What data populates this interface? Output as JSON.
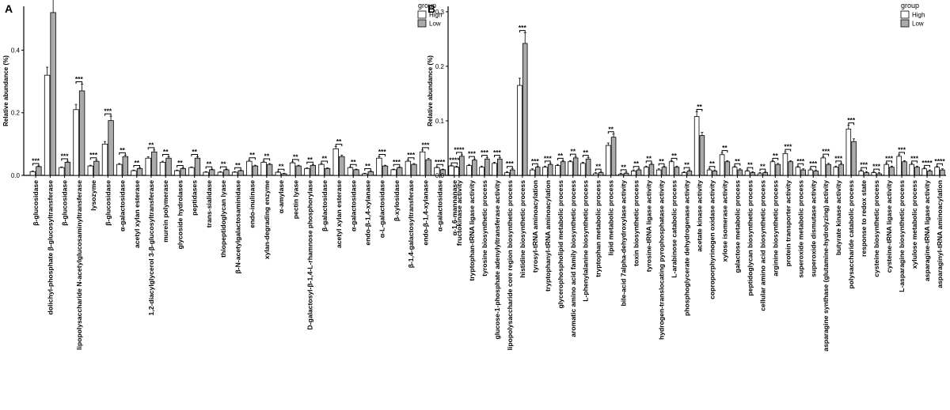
{
  "chart_data": [
    {
      "type": "bar",
      "panel_label": "A",
      "ylabel": "Relative abundance (%)",
      "yticks": [
        0.0,
        0.2,
        0.4
      ],
      "ytick_labels": [
        "0.0",
        "0.2",
        "0.4"
      ],
      "ylim": [
        0,
        0.54
      ],
      "legend": {
        "title": "group",
        "entries": [
          "High",
          "Low"
        ],
        "position": "top-right",
        "colors": [
          "#ffffff",
          "#aaaaaa"
        ]
      },
      "categories": [
        "β-glucosidase",
        "dolichyl-phosphate β-glucosyltransferase",
        "β-glucosidase",
        "lipopolysaccharide N-acetylglucosaminyltransferase",
        "lysozyme",
        "β-glucosidase",
        "α-galactosidase",
        "acetyl xylan esterase",
        "1,2-diacylglycerol 3-β-glucosyltransferase",
        "murein polymerase",
        "glycoside hydrolases",
        "peptidases",
        "trans-sialidase",
        "thiopeptidoglycan lyase",
        "β-N-acetylgalactosaminidase",
        "endo-inulinase",
        "xylan-degrading enzyme",
        "α-amylase",
        "pectin lyase",
        "D-galactosyl-β-1,4-L-rhamnose phosphorylase",
        "β-galactosidase",
        "acetyl xylan esterase",
        "α-galactosidase",
        "endo-β-1,4-xylanase",
        "α-L-galactosidase",
        "β-xylosidase",
        "β-1,4-galactosyltransferase",
        "endo-β-1,4-xylanase",
        "α-galactosidase",
        "α-1,6-mannanase"
      ],
      "series": [
        {
          "name": "High",
          "values": [
            0.012,
            0.32,
            0.025,
            0.21,
            0.03,
            0.1,
            0.035,
            0.015,
            0.055,
            0.042,
            0.015,
            0.025,
            0.01,
            0.01,
            0.01,
            0.045,
            0.042,
            0.01,
            0.04,
            0.022,
            0.035,
            0.085,
            0.025,
            0.005,
            0.055,
            0.018,
            0.045,
            0.075,
            0.025,
            0.03
          ]
        },
        {
          "name": "Low",
          "values": [
            0.028,
            0.52,
            0.042,
            0.27,
            0.045,
            0.175,
            0.06,
            0.022,
            0.075,
            0.055,
            0.022,
            0.055,
            0.018,
            0.018,
            0.015,
            0.03,
            0.035,
            0.005,
            0.03,
            0.032,
            0.022,
            0.06,
            0.018,
            0.012,
            0.03,
            0.025,
            0.035,
            0.05,
            0.018,
            0.025
          ]
        }
      ],
      "significance": [
        "***",
        "***",
        "***",
        "***",
        "***",
        "***",
        "**",
        "**",
        "**",
        "**",
        "**",
        "**",
        "**",
        "**",
        "**",
        "**",
        "**",
        "**",
        "**",
        "**",
        "**",
        "**",
        "**",
        "**",
        "***",
        "***",
        "***",
        "***",
        "****",
        "****"
      ]
    },
    {
      "type": "bar",
      "panel_label": "B",
      "ylabel": "Relative abundance (%)",
      "yticks": [
        0.0,
        0.1,
        0.2,
        0.3
      ],
      "ytick_labels": [
        "0.0",
        "0.1",
        "0.2",
        "0.3"
      ],
      "ylim": [
        0,
        0.31
      ],
      "legend": {
        "title": "group",
        "entries": [
          "High",
          "Low"
        ],
        "position": "top-right",
        "colors": [
          "#ffffff",
          "#aaaaaa"
        ]
      },
      "categories": [
        "fructokinase activity",
        "tryptophan-tRNA ligase activity",
        "tyrosine biosynthetic process",
        "glucose-1-phosphate adenylyltransferase activity",
        "lipopolysaccharide core region biosynthetic process",
        "histidine biosynthetic process",
        "tyrosyl-tRNA aminoacylation",
        "tryptophanyl-tRNA aminoacylation",
        "glycerophospholipid metabolic process",
        "aromatic amino acid family biosynthetic process",
        "L-phenylalanine biosynthetic process",
        "tryptophan metabolic process",
        "lipid metabolic process",
        "bile-acid 7alpha-dehydroxylase activity",
        "toxin biosynthetic process",
        "tyrosine-tRNA ligase activity",
        "hydrogen-translocating pyrophosphatase activity",
        "L-arabinose catabolic process",
        "phosphoglycerate dehydrogenase activity",
        "acetate kinase activity",
        "coproporphyrinogen oxidase activity",
        "xylose isomerase activity",
        "galactose metabolic process",
        "peptidoglycan biosynthetic process",
        "cellular amino acid biosynthetic process",
        "arginine biosynthetic process",
        "protein transporter activity",
        "superoxide metabolic process",
        "superoxide dismutase activity",
        "asparagine synthase (glutamine-hydrolyzing) activity",
        "butyrate kinase activity",
        "polysaccharide catabolic process",
        "response to redox state",
        "cysteine biosynthetic process",
        "cysteine-tRNA ligase activity",
        "L-asparagine biosynthetic process",
        "xylulose metabolic process",
        "asparagine-tRNA ligase activity",
        "asparaginyl-tRNA aminoacylation"
      ],
      "series": [
        {
          "name": "High",
          "values": [
            0.015,
            0.018,
            0.015,
            0.022,
            0.005,
            0.165,
            0.01,
            0.015,
            0.018,
            0.025,
            0.022,
            0.003,
            0.055,
            0.002,
            0.008,
            0.015,
            0.01,
            0.025,
            0.005,
            0.108,
            0.01,
            0.038,
            0.015,
            0.008,
            0.003,
            0.025,
            0.04,
            0.015,
            0.01,
            0.032,
            0.015,
            0.085,
            0.008,
            0.005,
            0.02,
            0.035,
            0.02,
            0.012,
            0.015
          ]
        },
        {
          "name": "Low",
          "values": [
            0.035,
            0.028,
            0.03,
            0.03,
            0.01,
            0.242,
            0.015,
            0.02,
            0.025,
            0.032,
            0.03,
            0.005,
            0.07,
            0.004,
            0.01,
            0.02,
            0.015,
            0.015,
            0.008,
            0.073,
            0.008,
            0.025,
            0.01,
            0.005,
            0.005,
            0.02,
            0.025,
            0.01,
            0.008,
            0.02,
            0.02,
            0.062,
            0.005,
            0.003,
            0.015,
            0.025,
            0.015,
            0.008,
            0.01
          ]
        }
      ],
      "significance": [
        "****",
        "***",
        "***",
        "***",
        "***",
        "***",
        "***",
        "***",
        "**",
        "**",
        "**",
        "**",
        "**",
        "**",
        "**",
        "**",
        "**",
        "**",
        "**",
        "**",
        "**",
        "**",
        "**",
        "**",
        "**",
        "**",
        "***",
        "***",
        "***",
        "***",
        "***",
        "***",
        "***",
        "***",
        "***",
        "***",
        "***",
        "****",
        "****"
      ]
    }
  ]
}
